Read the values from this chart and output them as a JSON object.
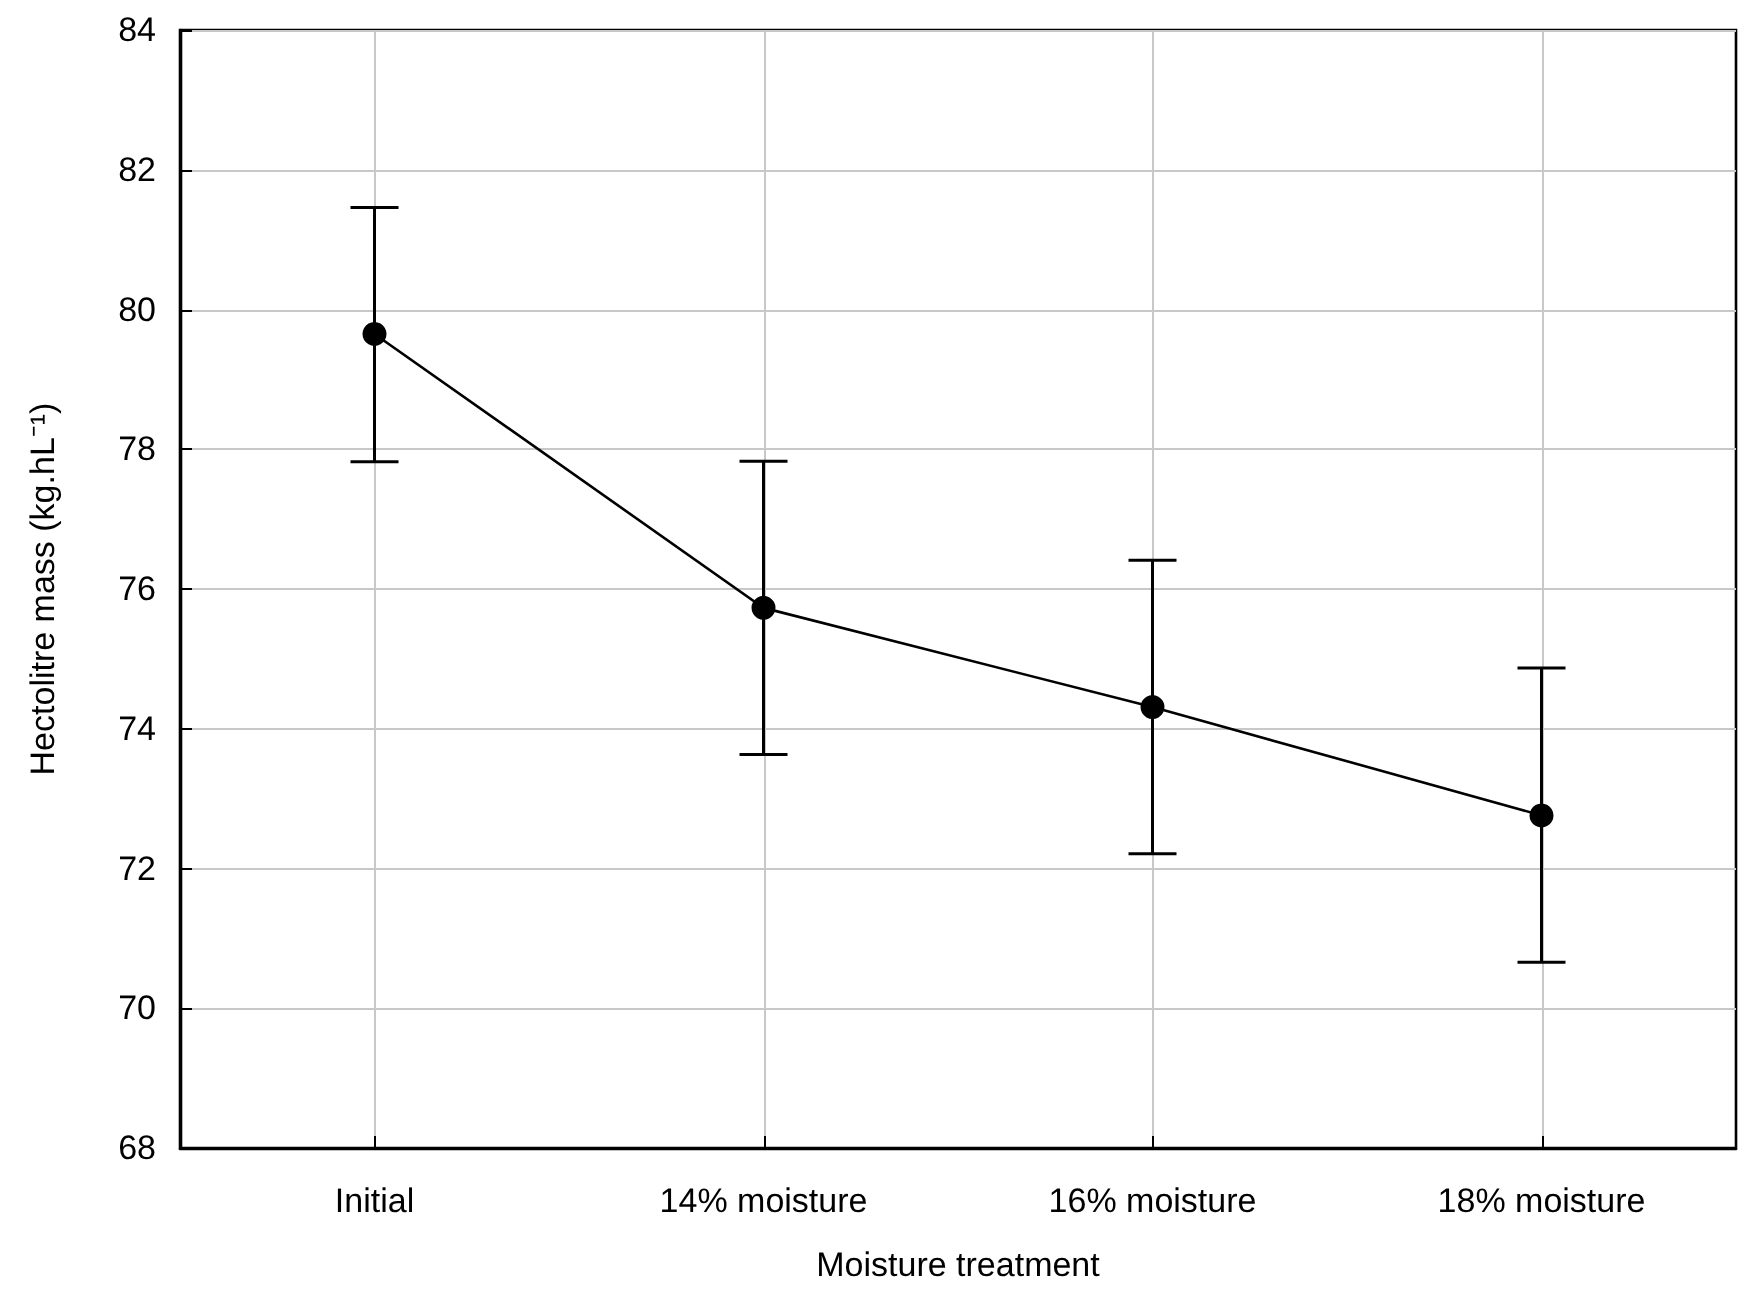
{
  "chart_data": {
    "type": "line",
    "xlabel": "Moisture treatment",
    "ylabel": "Hectolitre mass (kg.hL⁻¹)",
    "categories": [
      "Initial",
      "14% moisture",
      "16% moisture",
      "18% moisture"
    ],
    "series": [
      {
        "color": "#000000",
        "values": [
          79.65,
          75.73,
          74.31,
          72.76
        ],
        "errors": [
          [
            77.82,
            81.46
          ],
          [
            73.63,
            77.83
          ],
          [
            72.21,
            76.41
          ],
          [
            70.66,
            74.87
          ]
        ]
      }
    ],
    "ylim": [
      68,
      84
    ],
    "yticks": [
      68,
      70,
      72,
      74,
      76,
      78,
      80,
      82,
      84
    ],
    "grid": true,
    "marker": "circle",
    "line_style": "solid"
  }
}
